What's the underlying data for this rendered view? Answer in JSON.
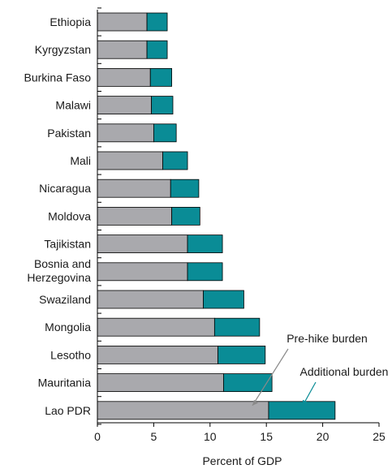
{
  "chart_data": {
    "type": "bar",
    "orientation": "horizontal",
    "stacked": true,
    "xlabel": "Percent of GDP",
    "xlim": [
      0,
      25
    ],
    "xticks": [
      0,
      5,
      10,
      15,
      20,
      25
    ],
    "categories": [
      "Ethiopia",
      "Kyrgyzstan",
      "Burkina Faso",
      "Malawi",
      "Pakistan",
      "Mali",
      "Nicaragua",
      "Moldova",
      "Tajikistan",
      "Bosnia and Herzegovina",
      "Swaziland",
      "Mongolia",
      "Lesotho",
      "Mauritania",
      "Lao PDR"
    ],
    "series": [
      {
        "name": "Pre-hike burden",
        "color": "#a9a9ad",
        "values": [
          4.4,
          4.4,
          4.7,
          4.8,
          5.0,
          5.8,
          6.5,
          6.6,
          8.0,
          8.0,
          9.4,
          10.4,
          10.7,
          11.2,
          15.2
        ]
      },
      {
        "name": "Additional burden",
        "color": "#0a8c96",
        "values": [
          1.8,
          1.8,
          1.9,
          1.9,
          2.0,
          2.2,
          2.5,
          2.5,
          3.1,
          3.1,
          3.6,
          4.0,
          4.2,
          4.3,
          5.9
        ]
      }
    ],
    "annotations": [
      {
        "text": "Pre-hike burden",
        "series": 0
      },
      {
        "text": "Additional burden",
        "series": 1
      }
    ]
  }
}
